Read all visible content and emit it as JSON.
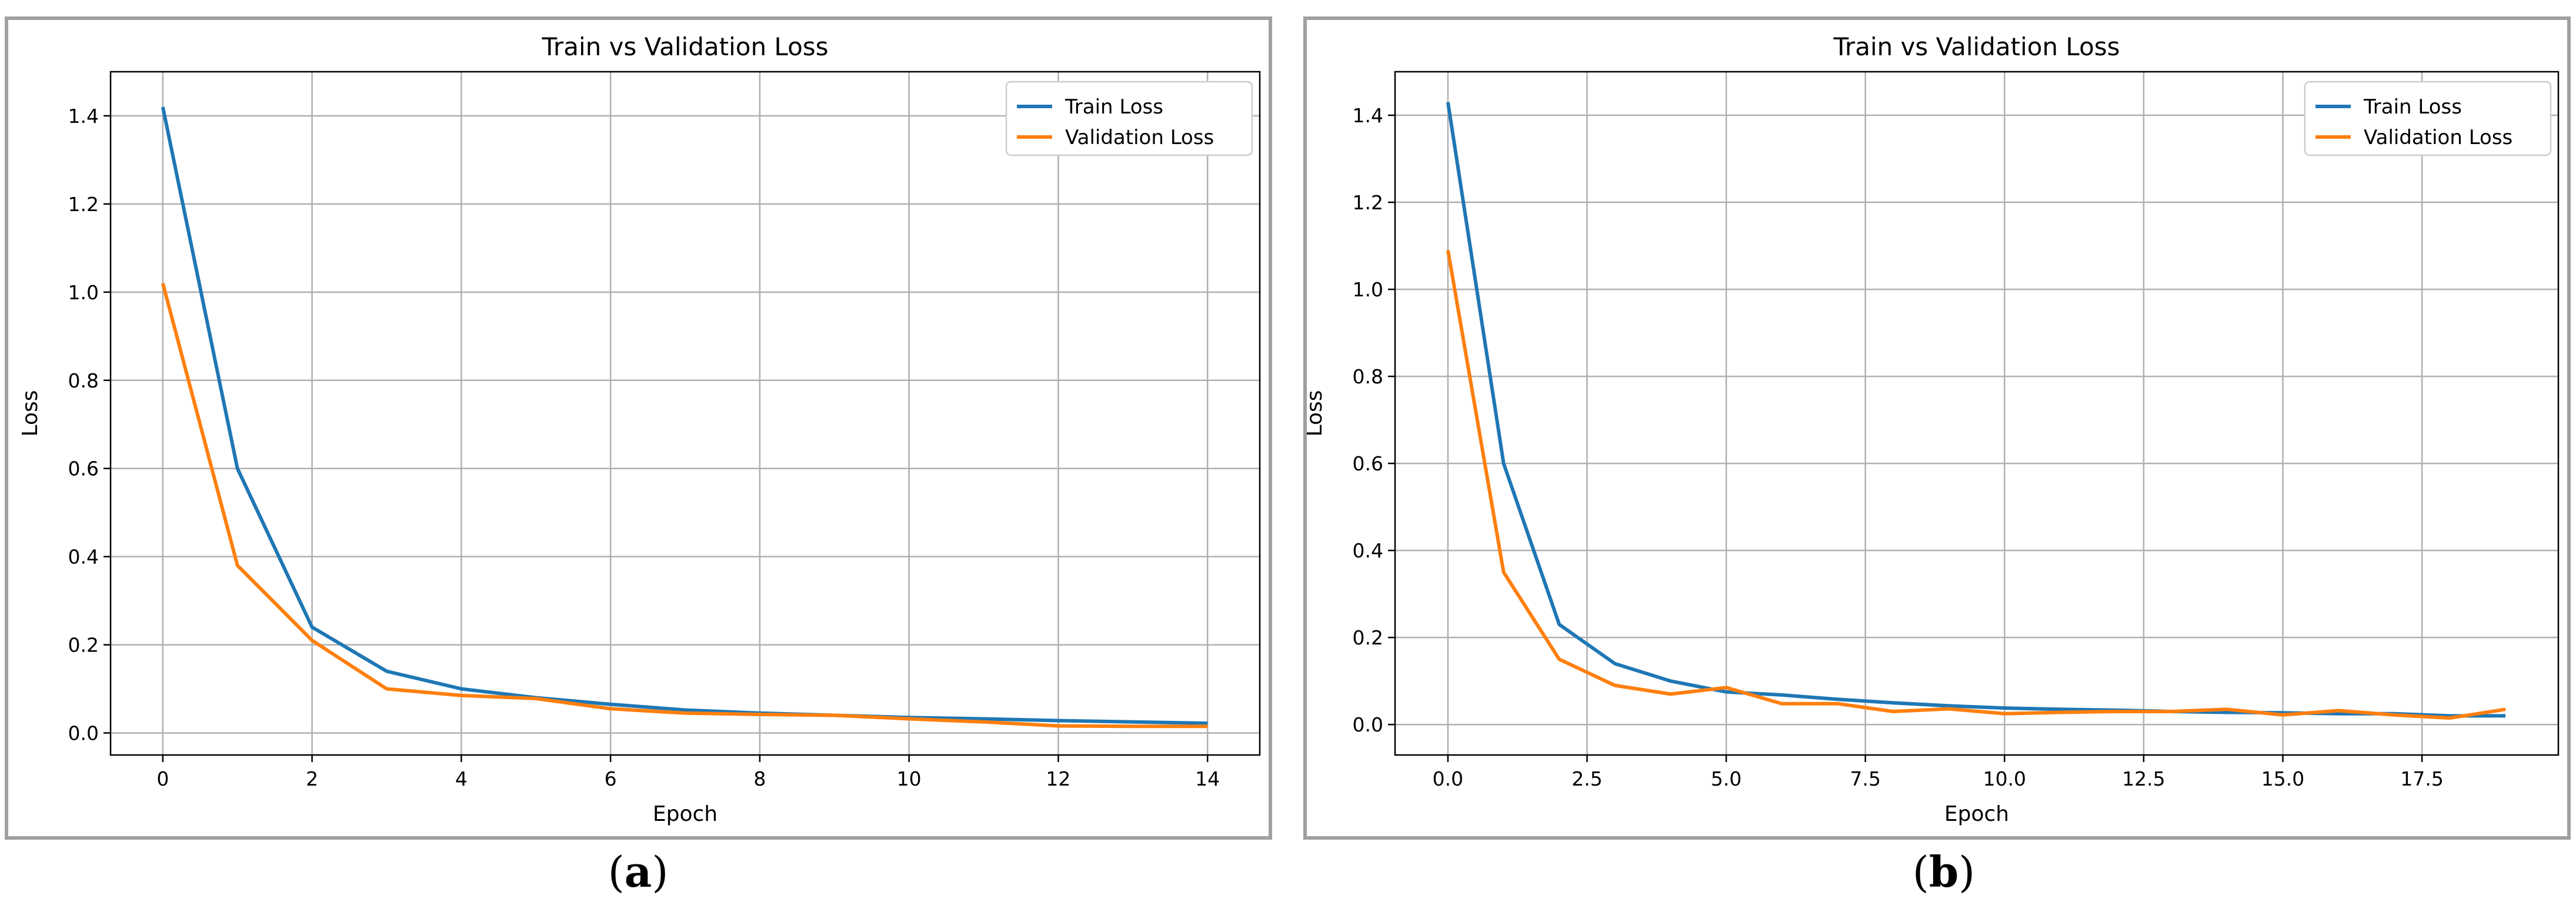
{
  "chart_data": [
    {
      "type": "line",
      "title": "Train vs Validation Loss",
      "xlabel": "Epoch",
      "ylabel": "Loss",
      "xlim": [
        -0.7,
        14.7
      ],
      "ylim": [
        -0.05,
        1.5
      ],
      "xticks": [
        0,
        2,
        4,
        6,
        8,
        10,
        12,
        14
      ],
      "xtick_labels": [
        "0",
        "2",
        "4",
        "6",
        "8",
        "10",
        "12",
        "14"
      ],
      "yticks": [
        0.0,
        0.2,
        0.4,
        0.6,
        0.8,
        1.0,
        1.2,
        1.4
      ],
      "ytick_labels": [
        "0.0",
        "0.2",
        "0.4",
        "0.6",
        "0.8",
        "1.0",
        "1.2",
        "1.4"
      ],
      "grid": true,
      "legend_position": "top-right",
      "x": [
        0,
        1,
        2,
        3,
        4,
        5,
        6,
        7,
        8,
        9,
        10,
        11,
        12,
        13,
        14
      ],
      "series": [
        {
          "name": "Train Loss",
          "color": "#1f77b4",
          "values": [
            1.42,
            0.6,
            0.24,
            0.14,
            0.1,
            0.08,
            0.065,
            0.052,
            0.045,
            0.04,
            0.035,
            0.032,
            0.028,
            0.025,
            0.022
          ]
        },
        {
          "name": "Validation Loss",
          "color": "#ff7f0e",
          "values": [
            1.02,
            0.38,
            0.21,
            0.1,
            0.085,
            0.078,
            0.055,
            0.045,
            0.042,
            0.04,
            0.032,
            0.025,
            0.016,
            0.015,
            0.015
          ]
        }
      ]
    },
    {
      "type": "line",
      "title": "Train vs Validation Loss",
      "xlabel": "Epoch",
      "ylabel": "Loss",
      "xlim": [
        -0.95,
        19.95
      ],
      "ylim": [
        -0.07,
        1.5
      ],
      "xticks": [
        0,
        2.5,
        5.0,
        7.5,
        10.0,
        12.5,
        15.0,
        17.5
      ],
      "xtick_labels": [
        "0.0",
        "2.5",
        "5.0",
        "7.5",
        "10.0",
        "12.5",
        "15.0",
        "17.5"
      ],
      "yticks": [
        0.0,
        0.2,
        0.4,
        0.6,
        0.8,
        1.0,
        1.2,
        1.4
      ],
      "ytick_labels": [
        "0.0",
        "0.2",
        "0.4",
        "0.6",
        "0.8",
        "1.0",
        "1.2",
        "1.4"
      ],
      "grid": true,
      "legend_position": "top-right",
      "x": [
        0,
        1,
        2,
        3,
        4,
        5,
        6,
        7,
        8,
        9,
        10,
        11,
        12,
        13,
        14,
        15,
        16,
        17,
        18,
        19
      ],
      "series": [
        {
          "name": "Train Loss",
          "color": "#1f77b4",
          "values": [
            1.43,
            0.6,
            0.23,
            0.14,
            0.1,
            0.075,
            0.068,
            0.058,
            0.05,
            0.043,
            0.038,
            0.035,
            0.033,
            0.03,
            0.028,
            0.027,
            0.025,
            0.025,
            0.02,
            0.02
          ]
        },
        {
          "name": "Validation Loss",
          "color": "#ff7f0e",
          "values": [
            1.09,
            0.35,
            0.15,
            0.09,
            0.07,
            0.085,
            0.048,
            0.048,
            0.03,
            0.036,
            0.025,
            0.028,
            0.03,
            0.03,
            0.035,
            0.022,
            0.032,
            0.022,
            0.015,
            0.035
          ]
        }
      ]
    }
  ],
  "captions": [
    {
      "open": "(",
      "letter": "a",
      "close": ")"
    },
    {
      "open": "(",
      "letter": "b",
      "close": ")"
    }
  ]
}
